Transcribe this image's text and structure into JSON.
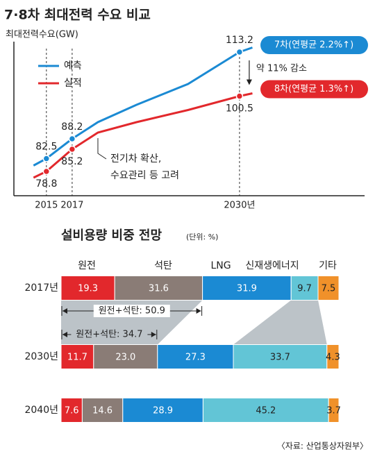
{
  "chart_data": [
    {
      "type": "line",
      "title": "7·8차 최대전력 수요 비교",
      "ylabel": "최대전력수요(GW)",
      "x": [
        2014,
        2015,
        2017,
        2019,
        2022,
        2026,
        2030,
        2031
      ],
      "xlim": [
        2013.5,
        2032
      ],
      "ylim": [
        74,
        118
      ],
      "xticks": [
        2015,
        2017,
        {
          "value": 2030,
          "label": "2030년"
        }
      ],
      "series": [
        {
          "name": "예측",
          "color": "#1b8ad3",
          "values": [
            80.5,
            82.5,
            88.2,
            93,
            98,
            104,
            113.2,
            114.5
          ],
          "value_labels": [
            null,
            "82.5",
            "88.2",
            null,
            null,
            null,
            "113.2",
            null
          ],
          "tag": "7차(연평균 2.2%↑)"
        },
        {
          "name": "실적",
          "color": "#e2282c",
          "values": [
            77,
            78.8,
            85.2,
            90,
            93,
            96.5,
            100.5,
            101.3
          ],
          "value_labels": [
            null,
            "78.8",
            "85.2",
            null,
            null,
            null,
            "100.5",
            null
          ],
          "tag": "8차(연평균 1.3%↑)"
        }
      ],
      "annotations": [
        "약 11% 감소",
        "전기차 확산,",
        "수요관리 등 고려"
      ]
    },
    {
      "type": "stacked_hbar",
      "title": "설비용량 비중 전망",
      "subtitle": "(단위: %)",
      "categories": [
        "2017년",
        "2030년",
        "2040년"
      ],
      "xlim": [
        0,
        100
      ],
      "series": [
        {
          "name": "원전",
          "color": "#e2282c",
          "values": [
            19.3,
            11.7,
            7.6
          ]
        },
        {
          "name": "석탄",
          "color": "#8a7c76",
          "values": [
            31.6,
            23.0,
            14.6
          ],
          "value_labels": [
            "31.6",
            "23.0",
            "14.6"
          ]
        },
        {
          "name": "LNG",
          "color": "#1b8ad3",
          "values": [
            31.9,
            27.3,
            28.9
          ]
        },
        {
          "name": "신재생에너지",
          "color": "#62c5d6",
          "values": [
            9.7,
            33.7,
            45.2
          ]
        },
        {
          "name": "기타",
          "color": "#f0912a",
          "values": [
            7.5,
            4.3,
            3.7
          ]
        }
      ],
      "annotations": [
        "원전+석탄: 50.9",
        "원전+석탄: 34.7"
      ]
    }
  ],
  "source": "〈자료: 산업통상자원부〉"
}
